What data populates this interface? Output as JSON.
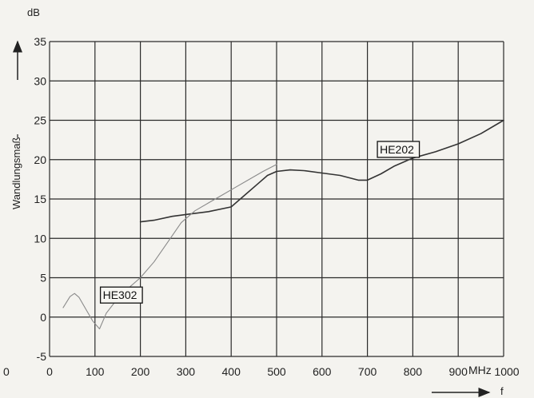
{
  "chart_data": {
    "type": "line",
    "ylabel": "Wandlungsmaß",
    "yunit": "dB",
    "xlabel": "f",
    "xunit": "MHz",
    "xlim": [
      0,
      1000
    ],
    "ylim": [
      -5,
      35
    ],
    "x_ticks": [
      0,
      100,
      200,
      300,
      400,
      500,
      600,
      700,
      800,
      900,
      1000
    ],
    "x_tick_labels": [
      "0",
      "100",
      "200",
      "300",
      "400",
      "500",
      "600",
      "700",
      "800",
      "900",
      "1000"
    ],
    "y_ticks": [
      -5,
      0,
      5,
      10,
      15,
      20,
      25,
      30,
      35
    ],
    "y_tick_labels": [
      "-5",
      "0",
      "5",
      "10",
      "15",
      "20",
      "25",
      "30",
      "35"
    ],
    "outside_left_label": "0",
    "grid": true,
    "series": [
      {
        "name": "HE202",
        "color": "#333333",
        "points": [
          [
            200,
            12.1
          ],
          [
            230,
            12.3
          ],
          [
            270,
            12.8
          ],
          [
            310,
            13.1
          ],
          [
            350,
            13.4
          ],
          [
            400,
            14.0
          ],
          [
            430,
            15.5
          ],
          [
            460,
            17.0
          ],
          [
            480,
            18.0
          ],
          [
            500,
            18.5
          ],
          [
            530,
            18.7
          ],
          [
            560,
            18.6
          ],
          [
            600,
            18.3
          ],
          [
            640,
            18.0
          ],
          [
            680,
            17.4
          ],
          [
            700,
            17.4
          ],
          [
            730,
            18.2
          ],
          [
            760,
            19.2
          ],
          [
            800,
            20.2
          ],
          [
            850,
            21.0
          ],
          [
            900,
            22.0
          ],
          [
            950,
            23.3
          ],
          [
            1000,
            25.0
          ]
        ]
      },
      {
        "name": "HE302",
        "color": "#8a8a8a",
        "points": [
          [
            30,
            1.2
          ],
          [
            45,
            2.6
          ],
          [
            55,
            3.0
          ],
          [
            65,
            2.5
          ],
          [
            80,
            1.0
          ],
          [
            95,
            -0.5
          ],
          [
            110,
            -1.5
          ],
          [
            125,
            0.5
          ],
          [
            145,
            2.0
          ],
          [
            170,
            3.5
          ],
          [
            200,
            5.0
          ],
          [
            230,
            7.0
          ],
          [
            260,
            9.5
          ],
          [
            290,
            12.0
          ],
          [
            320,
            13.5
          ],
          [
            350,
            14.5
          ],
          [
            380,
            15.5
          ],
          [
            410,
            16.5
          ],
          [
            440,
            17.5
          ],
          [
            470,
            18.5
          ],
          [
            500,
            19.4
          ]
        ]
      }
    ],
    "annotations": [
      {
        "text": "HE202",
        "series": "HE202",
        "x": 810,
        "y": 21.3,
        "anchor": "left"
      },
      {
        "text": "HE302",
        "series": "HE302",
        "x": 200,
        "y": 2.8,
        "anchor": "left"
      }
    ]
  }
}
